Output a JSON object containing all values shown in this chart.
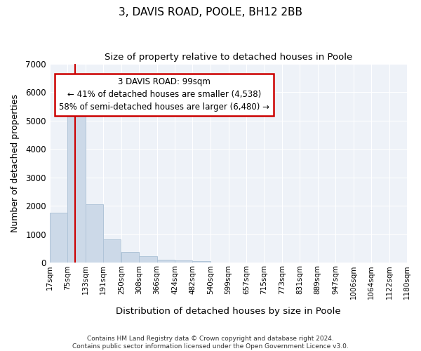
{
  "title": "3, DAVIS ROAD, POOLE, BH12 2BB",
  "subtitle": "Size of property relative to detached houses in Poole",
  "xlabel": "Distribution of detached houses by size in Poole",
  "ylabel": "Number of detached properties",
  "bar_color": "#ccd9e8",
  "bar_edge_color": "#b0c4d8",
  "background_color": "#ffffff",
  "plot_background": "#eef2f8",
  "grid_color": "#ffffff",
  "annotation_box_color": "#cc0000",
  "property_line_color": "#cc0000",
  "property_sqm": 99,
  "annotation_text_line1": "3 DAVIS ROAD: 99sqm",
  "annotation_text_line2": "← 41% of detached houses are smaller (4,538)",
  "annotation_text_line3": "58% of semi-detached houses are larger (6,480) →",
  "footer_line1": "Contains HM Land Registry data © Crown copyright and database right 2024.",
  "footer_line2": "Contains public sector information licensed under the Open Government Licence v3.0.",
  "bins": [
    17,
    75,
    133,
    191,
    250,
    308,
    366,
    424,
    482,
    540,
    599,
    657,
    715,
    773,
    831,
    889,
    947,
    1006,
    1064,
    1122,
    1180
  ],
  "counts": [
    1760,
    5750,
    2050,
    830,
    375,
    230,
    115,
    90,
    50,
    0,
    0,
    0,
    0,
    0,
    0,
    0,
    0,
    0,
    0,
    0
  ],
  "ylim": [
    0,
    7000
  ],
  "yticks": [
    0,
    1000,
    2000,
    3000,
    4000,
    5000,
    6000,
    7000
  ]
}
